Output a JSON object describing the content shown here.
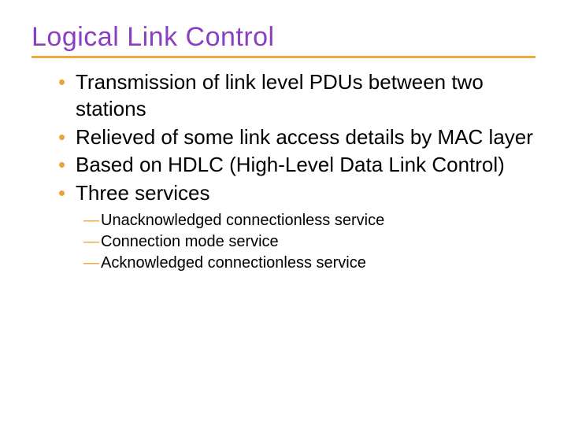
{
  "title": {
    "text": "Logical Link Control",
    "color": "#8a3fc0",
    "fontsize": 34
  },
  "underline": {
    "color": "#f2a93b",
    "thickness": 3
  },
  "bullets": {
    "color": "#e8a43a",
    "fontsize": 26,
    "items": [
      {
        "text": "Transmission of link level PDUs between two stations"
      },
      {
        "text": "Relieved of some link access details by MAC layer"
      },
      {
        "text": "Based on HDLC (High-Level Data Link Control)"
      },
      {
        "text": "Three services"
      }
    ]
  },
  "subbullets": {
    "color": "#e8a43a",
    "fontsize": 20,
    "items": [
      {
        "text": "Unacknowledged connectionless service"
      },
      {
        "text": "Connection mode service"
      },
      {
        "text": "Acknowledged connectionless service"
      }
    ]
  },
  "body_text_color": "#000000",
  "background_color": "#ffffff"
}
